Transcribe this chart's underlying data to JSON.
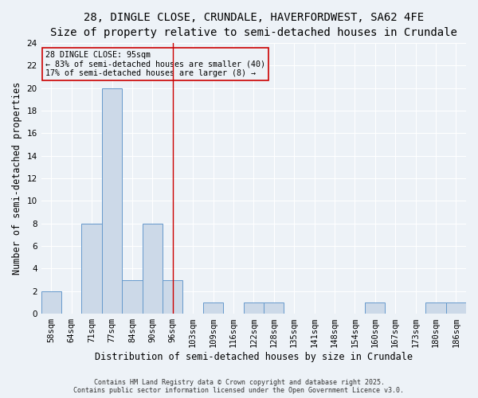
{
  "title_line1": "28, DINGLE CLOSE, CRUNDALE, HAVERFORDWEST, SA62 4FE",
  "title_line2": "Size of property relative to semi-detached houses in Crundale",
  "xlabel": "Distribution of semi-detached houses by size in Crundale",
  "ylabel": "Number of semi-detached properties",
  "categories": [
    "58sqm",
    "64sqm",
    "71sqm",
    "77sqm",
    "84sqm",
    "90sqm",
    "96sqm",
    "103sqm",
    "109sqm",
    "116sqm",
    "122sqm",
    "128sqm",
    "135sqm",
    "141sqm",
    "148sqm",
    "154sqm",
    "160sqm",
    "167sqm",
    "173sqm",
    "180sqm",
    "186sqm"
  ],
  "values": [
    2,
    0,
    8,
    20,
    3,
    8,
    3,
    0,
    1,
    0,
    1,
    1,
    0,
    0,
    0,
    0,
    1,
    0,
    0,
    1,
    1
  ],
  "bar_color": "#ccd9e8",
  "bar_edge_color": "#6699cc",
  "vline_x": 6,
  "vline_color": "#cc0000",
  "ylim": [
    0,
    24
  ],
  "yticks": [
    0,
    2,
    4,
    6,
    8,
    10,
    12,
    14,
    16,
    18,
    20,
    22,
    24
  ],
  "annotation_title": "28 DINGLE CLOSE: 95sqm",
  "annotation_line1": "← 83% of semi-detached houses are smaller (40)",
  "annotation_line2": "17% of semi-detached houses are larger (8) →",
  "annotation_box_color": "#cc0000",
  "footer_line1": "Contains HM Land Registry data © Crown copyright and database right 2025.",
  "footer_line2": "Contains public sector information licensed under the Open Government Licence v3.0.",
  "background_color": "#edf2f7",
  "grid_color": "#ffffff",
  "title_fontsize": 10,
  "subtitle_fontsize": 9,
  "axis_label_fontsize": 8.5,
  "tick_fontsize": 7.5,
  "footer_fontsize": 6
}
